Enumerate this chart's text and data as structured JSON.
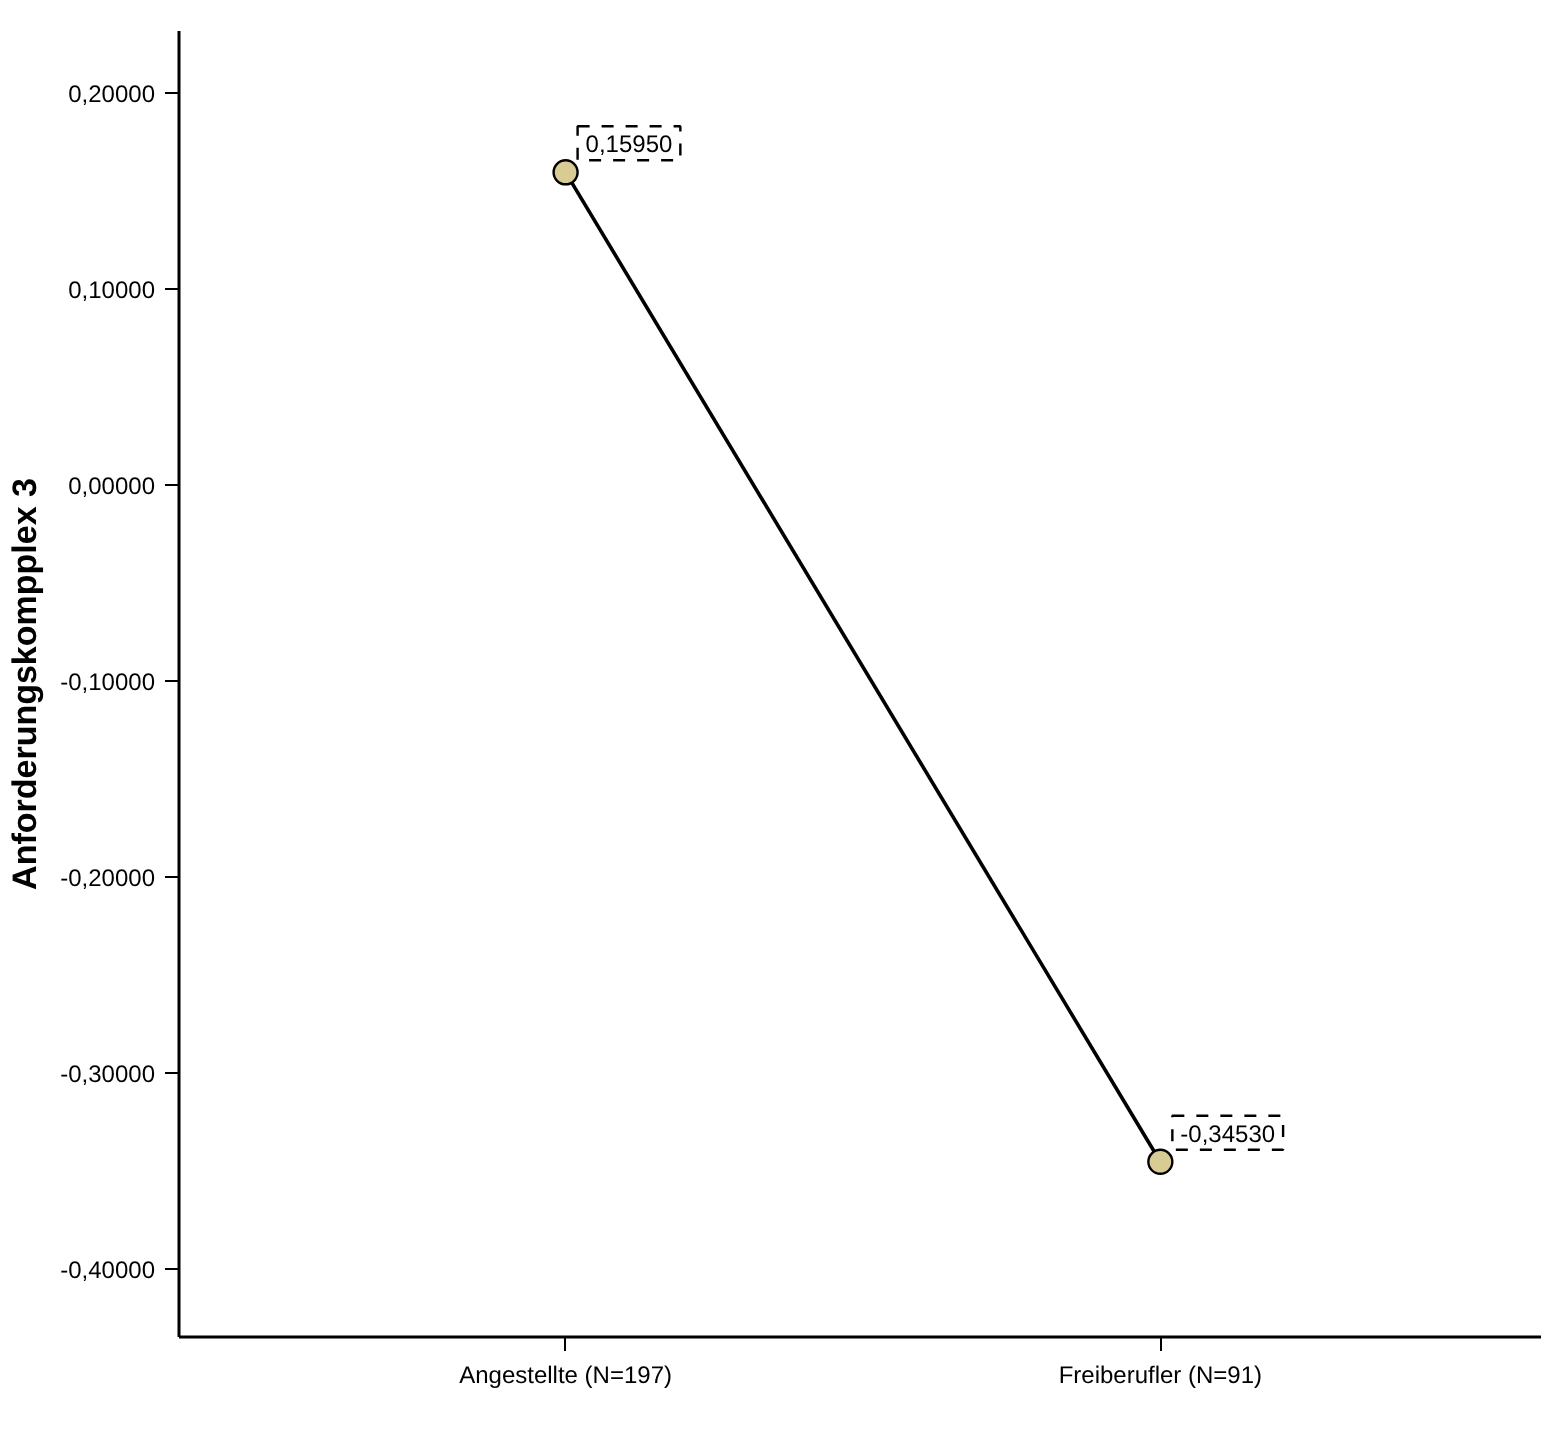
{
  "chart_data": {
    "type": "line",
    "ylabel": "Anforderungskompplex 3",
    "categories": [
      "Angestellte (N=197)",
      "Freiberufler (N=91)"
    ],
    "series": [
      {
        "color": "#d8cc94",
        "values": [
          0.1595,
          -0.3453
        ],
        "value_labels": [
          "0,15950",
          "-0,34530"
        ]
      }
    ],
    "marker": "circle",
    "line_style": "solid",
    "ylim": [
      -0.4347,
      0.2316
    ],
    "yticks": [
      {
        "value": 0.2,
        "label": "0,20000"
      },
      {
        "value": 0.1,
        "label": "0,10000"
      },
      {
        "value": 0,
        "label": "0,00000"
      },
      {
        "value": -0.1,
        "label": "-0,10000"
      },
      {
        "value": -0.2,
        "label": "-0,20000"
      },
      {
        "value": -0.3,
        "label": "-0,30000"
      },
      {
        "value": -0.4,
        "label": "-0,40000"
      }
    ],
    "grid": false
  }
}
